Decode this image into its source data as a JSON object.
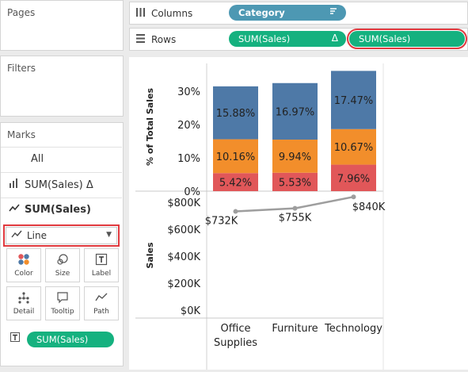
{
  "left": {
    "pages_title": "Pages",
    "filters_title": "Filters",
    "marks_title": "Marks",
    "marks_all": "All",
    "marks_bar_item": "SUM(Sales) Δ",
    "marks_line_item": "SUM(Sales)",
    "mark_type": "Line",
    "buttons": {
      "color": "Color",
      "size": "Size",
      "label": "Label",
      "detail": "Detail",
      "tooltip": "Tooltip",
      "path": "Path"
    },
    "label_pill": "SUM(Sales)"
  },
  "shelves": {
    "columns_label": "Columns",
    "rows_label": "Rows",
    "columns_pill": "Category",
    "rows_pill_1": "SUM(Sales)",
    "rows_pill_1_icon": "Δ",
    "rows_pill_2": "SUM(Sales)"
  },
  "colors": {
    "accent_green": "#15b17f",
    "accent_blue": "#4d98b3",
    "highlight_red": "#e0393e",
    "bar_blue": "#4e79a7",
    "bar_orange": "#f28e2b",
    "bar_red": "#e15759",
    "line_gray": "#9e9e9e"
  },
  "chart_data": [
    {
      "type": "bar",
      "stacked": true,
      "ylabel": "% of Total Sales",
      "yticks": [
        "30%",
        "20%",
        "10%",
        "0%"
      ],
      "categories": [
        "Office Supplies",
        "Furniture",
        "Technology"
      ],
      "series": [
        {
          "color": "#e15759",
          "values": [
            5.42,
            5.53,
            7.96
          ],
          "labels": [
            "5.42%",
            "5.53%",
            "7.96%"
          ]
        },
        {
          "color": "#f28e2b",
          "values": [
            10.16,
            9.94,
            10.67
          ],
          "labels": [
            "10.16%",
            "9.94%",
            "10.67%"
          ]
        },
        {
          "color": "#4e79a7",
          "values": [
            15.88,
            16.97,
            17.47
          ],
          "labels": [
            "15.88%",
            "16.97%",
            "17.47%"
          ]
        }
      ],
      "ylim": [
        0,
        36
      ]
    },
    {
      "type": "line",
      "ylabel": "Sales",
      "yticks": [
        "$800K",
        "$600K",
        "$400K",
        "$200K",
        "$0K"
      ],
      "categories": [
        "Office Supplies",
        "Furniture",
        "Technology"
      ],
      "values": [
        732,
        755,
        840
      ],
      "labels": [
        "$732K",
        "$755K",
        "$840K"
      ],
      "ylim": [
        0,
        850
      ]
    }
  ],
  "x_labels": [
    "Office\nSupplies",
    "Furniture",
    "Technology"
  ]
}
